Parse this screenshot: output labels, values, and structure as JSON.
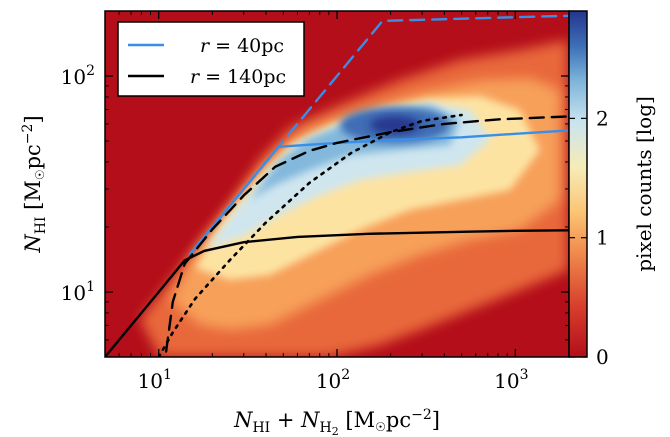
{
  "chart_data": {
    "type": "heatmap",
    "xlabel": "N_HI + N_H2 [M☉pc⁻²]",
    "ylabel": "N_HI [M☉pc⁻²]",
    "xscale": "log",
    "yscale": "log",
    "xlim": [
      5,
      2000
    ],
    "ylim": [
      5,
      200
    ],
    "x_ticks": [
      {
        "value": 10,
        "base": "10",
        "exp": "1"
      },
      {
        "value": 100,
        "base": "10",
        "exp": "2"
      },
      {
        "value": 1000,
        "base": "10",
        "exp": "3"
      }
    ],
    "y_ticks": [
      {
        "value": 10,
        "base": "10",
        "exp": "1"
      },
      {
        "value": 100,
        "base": "10",
        "exp": "2"
      }
    ],
    "colorbar": {
      "label": "pixel counts [log]",
      "range": [
        0,
        2.9
      ],
      "ticks": [
        {
          "value": 0,
          "label": "0"
        },
        {
          "value": 1,
          "label": "1"
        },
        {
          "value": 2,
          "label": "2"
        }
      ]
    },
    "background_color": "#b40e1a",
    "series": [
      {
        "name": "r = 40pc",
        "color": "#3a8ee6",
        "style": "dashed",
        "points": [
          [
            15,
            15
          ],
          [
            20,
            20
          ],
          [
            30,
            30
          ],
          [
            50,
            50
          ],
          [
            80,
            80
          ],
          [
            120,
            120
          ],
          [
            180,
            180
          ],
          [
            300,
            182
          ],
          [
            600,
            185
          ],
          [
            1200,
            188
          ],
          [
            2000,
            190
          ]
        ]
      },
      {
        "color": "#3a8ee6",
        "style": "solid",
        "points": [
          [
            15,
            15
          ],
          [
            20,
            20
          ],
          [
            30,
            30
          ],
          [
            47,
            47
          ],
          [
            100,
            49
          ],
          [
            200,
            50.5
          ],
          [
            500,
            52
          ],
          [
            1000,
            54
          ],
          [
            2000,
            56
          ]
        ]
      },
      {
        "color": "#000000",
        "style": "dashed",
        "points": [
          [
            11,
            5.3
          ],
          [
            12,
            9
          ],
          [
            14,
            13.5
          ],
          [
            20,
            19.5
          ],
          [
            30,
            28
          ],
          [
            45,
            38
          ],
          [
            70,
            45
          ],
          [
            100,
            49
          ],
          [
            200,
            55
          ],
          [
            400,
            60
          ],
          [
            800,
            63
          ],
          [
            2000,
            65
          ]
        ]
      },
      {
        "color": "#000000",
        "style": "dotted",
        "points": [
          [
            10,
            5
          ],
          [
            12,
            6.5
          ],
          [
            16,
            9.3
          ],
          [
            25,
            14
          ],
          [
            40,
            21
          ],
          [
            70,
            32
          ],
          [
            120,
            44
          ],
          [
            200,
            55
          ],
          [
            300,
            62
          ],
          [
            500,
            66
          ]
        ]
      },
      {
        "name": "r = 140pc",
        "color": "#000000",
        "style": "solid",
        "points": [
          [
            5,
            5
          ],
          [
            10,
            10
          ],
          [
            14,
            14
          ],
          [
            18,
            15.5
          ],
          [
            30,
            17
          ],
          [
            60,
            18
          ],
          [
            150,
            18.6
          ],
          [
            500,
            19
          ],
          [
            1000,
            19.2
          ],
          [
            2000,
            19.3
          ]
        ]
      }
    ],
    "legend": {
      "position": "top-left",
      "entries": [
        {
          "var": "r",
          "value": "40pc",
          "color": "#3a8ee6"
        },
        {
          "var": "r",
          "value": "140pc",
          "color": "#000000"
        }
      ]
    }
  }
}
